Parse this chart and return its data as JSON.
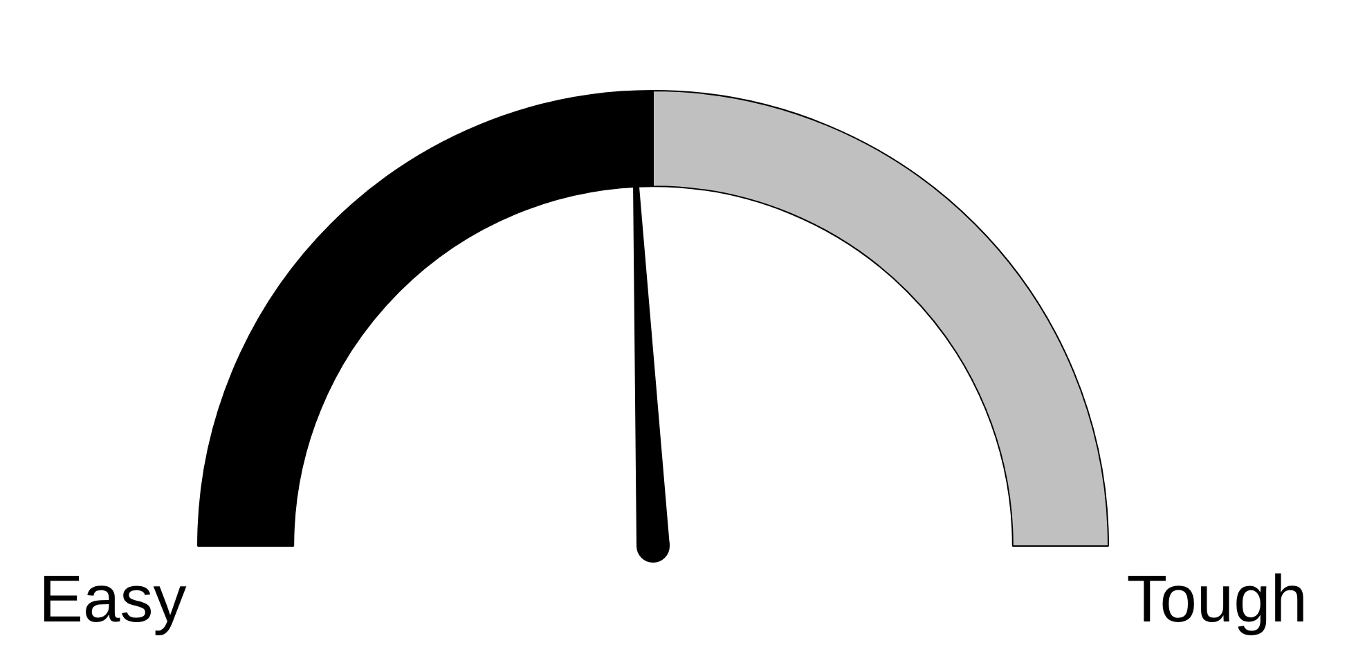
{
  "chart_data": {
    "type": "donut",
    "categories": [
      "Easy",
      "Tough"
    ],
    "values": [
      50,
      50
    ],
    "colors": [
      "#000000",
      "#c0c0c0"
    ],
    "needle": "Easy",
    "legend": false
  }
}
